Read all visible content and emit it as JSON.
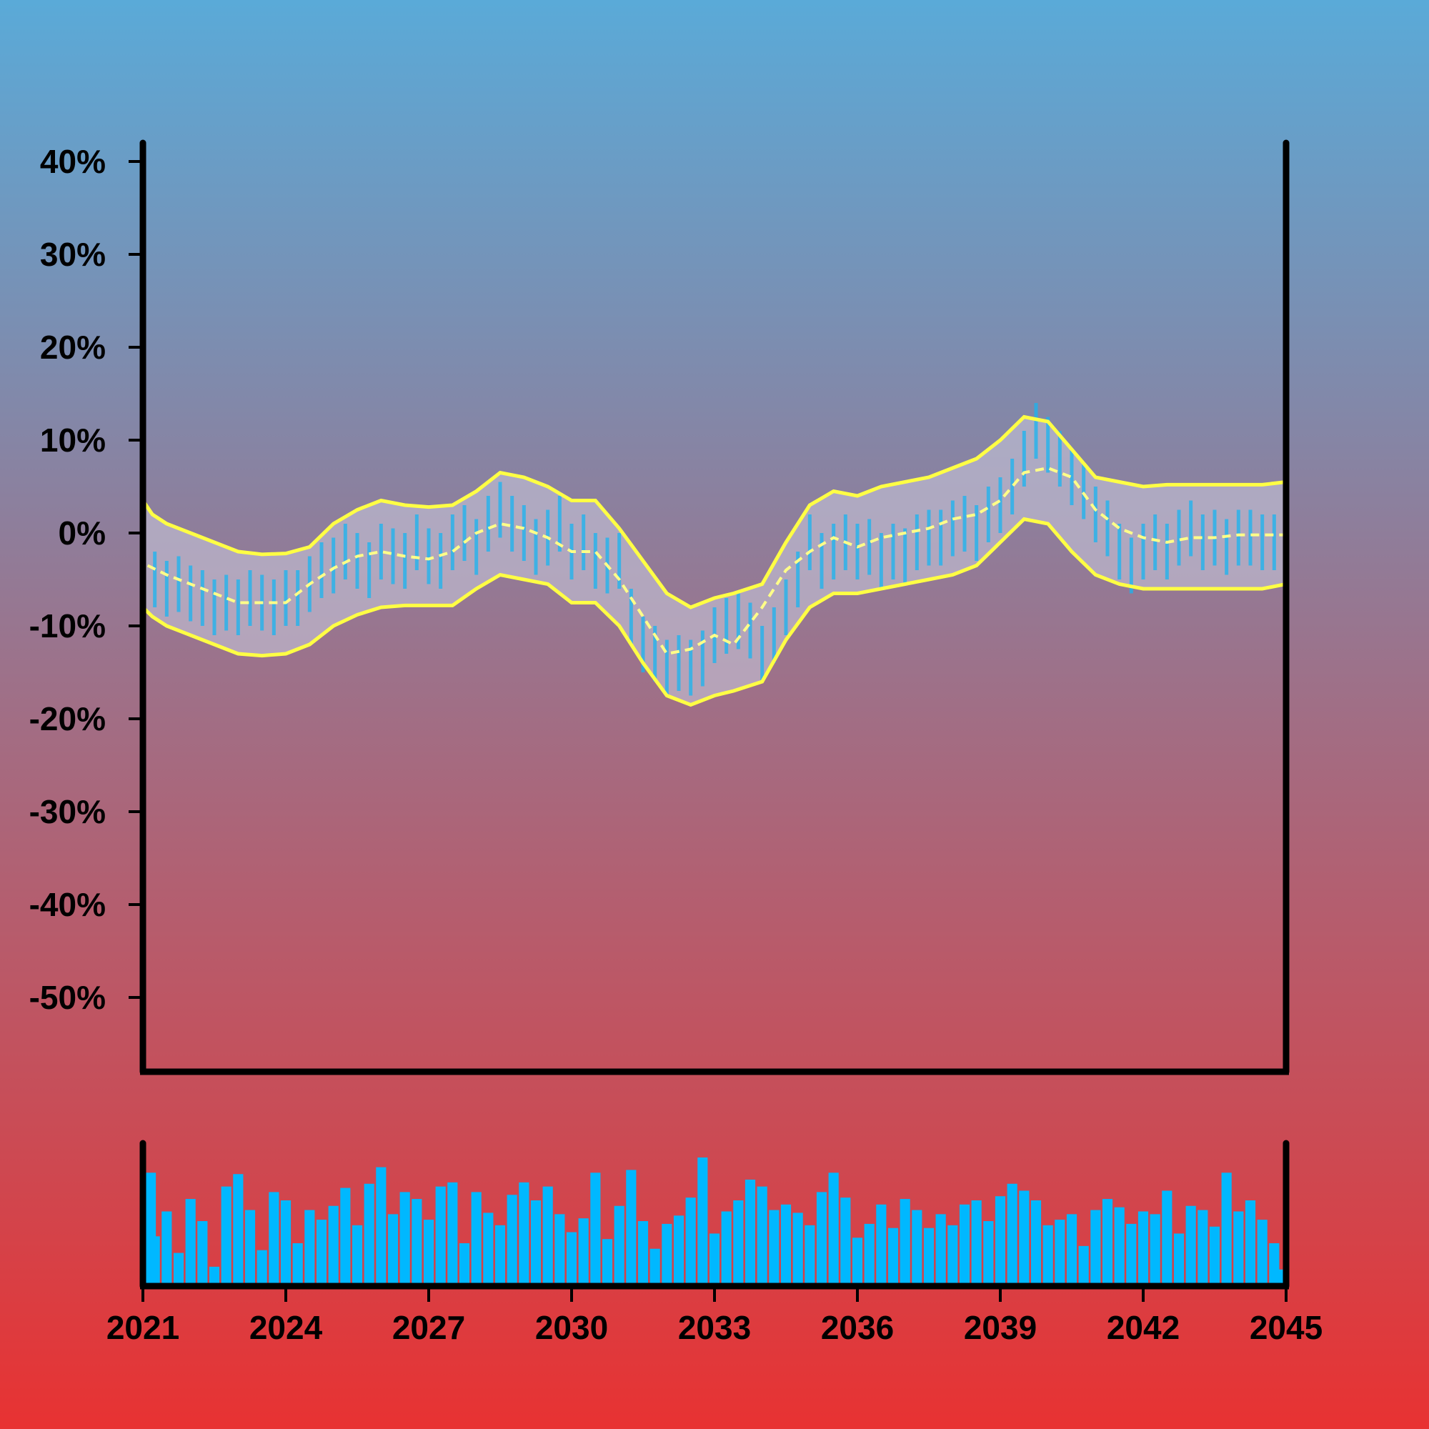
{
  "chart_data": {
    "type": "line",
    "title": "",
    "xlabel": "",
    "ylabel": "",
    "xlim": [
      2021,
      2045
    ],
    "ylim": [
      -58,
      42
    ],
    "x_ticks": [
      2021,
      2024,
      2027,
      2030,
      2033,
      2036,
      2039,
      2042,
      2045
    ],
    "x_tick_labels": [
      "2021",
      "2024",
      "2027",
      "2030",
      "2033",
      "2036",
      "2039",
      "2042",
      "2045"
    ],
    "y_ticks": [
      40,
      30,
      20,
      10,
      0,
      -10,
      -20,
      -30,
      -40,
      -50
    ],
    "y_tick_labels": [
      "40%",
      "30%",
      "20%",
      "10%",
      "0%",
      "-10%",
      "-20%",
      "-30%",
      "-40%",
      "-50%"
    ],
    "grid": false,
    "legend": "none",
    "series": [
      {
        "role": "moving-average",
        "style": "dashed",
        "x": [
          2021.1,
          2021.5,
          2022.0,
          2022.5,
          2023.0,
          2023.5,
          2024.0,
          2024.5,
          2025.0,
          2025.5,
          2026.0,
          2026.5,
          2027.0,
          2027.5,
          2028.0,
          2028.5,
          2029.0,
          2029.5,
          2030.0,
          2030.5,
          2031.0,
          2031.5,
          2032.0,
          2032.5,
          2033.0,
          2033.4,
          2034.0,
          2034.5,
          2035.0,
          2035.5,
          2036.0,
          2036.5,
          2037.0,
          2037.5,
          2038.0,
          2038.5,
          2039.0,
          2039.5,
          2040.0,
          2040.5,
          2041.0,
          2041.5,
          2042.0,
          2042.5,
          2043.0,
          2043.5,
          2044.0,
          2044.5,
          2045.0
        ],
        "y": [
          -3.5,
          -4.5,
          -5.5,
          -6.5,
          -7.5,
          -7.5,
          -7.5,
          -5.5,
          -3.8,
          -2.5,
          -2.0,
          -2.5,
          -2.8,
          -2.0,
          0.0,
          1.0,
          0.5,
          -0.5,
          -2.0,
          -2.0,
          -5.0,
          -9.0,
          -13.0,
          -12.5,
          -11.0,
          -12.0,
          -8.0,
          -4.0,
          -2.0,
          -0.5,
          -1.5,
          -0.5,
          0.0,
          0.5,
          1.5,
          2.0,
          3.5,
          6.5,
          7.0,
          6.0,
          2.5,
          0.5,
          -0.5,
          -1.0,
          -0.5,
          -0.5,
          -0.2,
          -0.2,
          -0.2
        ]
      },
      {
        "role": "upper-band",
        "style": "solid",
        "x": [
          2021.0,
          2021.2,
          2021.5,
          2022.0,
          2022.5,
          2023.0,
          2023.5,
          2024.0,
          2024.5,
          2025.0,
          2025.5,
          2026.0,
          2026.5,
          2027.0,
          2027.5,
          2028.0,
          2028.5,
          2029.0,
          2029.5,
          2030.0,
          2030.5,
          2031.0,
          2031.5,
          2032.0,
          2032.5,
          2033.0,
          2033.4,
          2034.0,
          2034.5,
          2035.0,
          2035.5,
          2036.0,
          2036.5,
          2037.0,
          2037.5,
          2038.0,
          2038.5,
          2039.0,
          2039.5,
          2040.0,
          2040.5,
          2041.0,
          2041.5,
          2042.0,
          2042.5,
          2043.0,
          2043.5,
          2044.0,
          2044.5,
          2045.0
        ],
        "y": [
          3.5,
          2.0,
          1.0,
          0.0,
          -1.0,
          -2.0,
          -2.3,
          -2.2,
          -1.5,
          1.0,
          2.5,
          3.5,
          3.0,
          2.8,
          3.0,
          4.5,
          6.5,
          6.0,
          5.0,
          3.5,
          3.5,
          0.5,
          -3.0,
          -6.5,
          -8.0,
          -7.0,
          -6.5,
          -5.5,
          -1.0,
          3.0,
          4.5,
          4.0,
          5.0,
          5.5,
          6.0,
          7.0,
          8.0,
          10.0,
          12.5,
          12.0,
          9.0,
          6.0,
          5.5,
          5.0,
          5.2,
          5.2,
          5.2,
          5.2,
          5.2,
          5.5
        ]
      },
      {
        "role": "lower-band",
        "style": "solid",
        "x": [
          2021.0,
          2021.2,
          2021.5,
          2022.0,
          2022.5,
          2023.0,
          2023.5,
          2024.0,
          2024.5,
          2025.0,
          2025.5,
          2026.0,
          2026.5,
          2027.0,
          2027.5,
          2028.0,
          2028.5,
          2029.0,
          2029.5,
          2030.0,
          2030.5,
          2031.0,
          2031.5,
          2032.0,
          2032.5,
          2033.0,
          2033.4,
          2034.0,
          2034.5,
          2035.0,
          2035.5,
          2036.0,
          2036.5,
          2037.0,
          2037.5,
          2038.0,
          2038.5,
          2039.0,
          2039.5,
          2040.0,
          2040.5,
          2041.0,
          2041.5,
          2042.0,
          2042.5,
          2043.0,
          2043.5,
          2044.0,
          2044.5,
          2045.0
        ],
        "y": [
          -8.0,
          -9.0,
          -10.0,
          -11.0,
          -12.0,
          -13.0,
          -13.2,
          -13.0,
          -12.0,
          -10.0,
          -8.8,
          -8.0,
          -7.8,
          -7.8,
          -7.8,
          -6.0,
          -4.5,
          -5.0,
          -5.5,
          -7.5,
          -7.5,
          -10.0,
          -14.0,
          -17.5,
          -18.5,
          -17.5,
          -17.0,
          -16.0,
          -11.5,
          -8.0,
          -6.5,
          -6.5,
          -6.0,
          -5.5,
          -5.0,
          -4.5,
          -3.5,
          -1.0,
          1.5,
          1.0,
          -2.0,
          -4.5,
          -5.5,
          -6.0,
          -6.0,
          -6.0,
          -6.0,
          -6.0,
          -6.0,
          -5.5
        ]
      },
      {
        "role": "observed",
        "style": "columns",
        "x": [
          2021.0,
          2021.25,
          2021.5,
          2021.75,
          2022.0,
          2022.25,
          2022.5,
          2022.75,
          2023.0,
          2023.25,
          2023.5,
          2023.75,
          2024.0,
          2024.25,
          2024.5,
          2024.75,
          2025.0,
          2025.25,
          2025.5,
          2025.75,
          2026.0,
          2026.25,
          2026.5,
          2026.75,
          2027.0,
          2027.25,
          2027.5,
          2027.75,
          2028.0,
          2028.25,
          2028.5,
          2028.75,
          2029.0,
          2029.25,
          2029.5,
          2029.75,
          2030.0,
          2030.25,
          2030.5,
          2030.75,
          2031.0,
          2031.25,
          2031.5,
          2031.75,
          2032.0,
          2032.25,
          2032.5,
          2032.75,
          2033.0,
          2033.25,
          2033.5,
          2033.75,
          2034.0,
          2034.25,
          2034.5,
          2034.75,
          2035.0,
          2035.25,
          2035.5,
          2035.75,
          2036.0,
          2036.25,
          2036.5,
          2036.75,
          2037.0,
          2037.25,
          2037.5,
          2037.75,
          2038.0,
          2038.25,
          2038.5,
          2038.75,
          2039.0,
          2039.25,
          2039.5,
          2039.75,
          2040.0,
          2040.25,
          2040.5,
          2040.75,
          2041.0,
          2041.25,
          2041.5,
          2041.75,
          2042.0,
          2042.25,
          2042.5,
          2042.75,
          2043.0,
          2043.25,
          2043.5,
          2043.75,
          2044.0,
          2044.25,
          2044.5,
          2044.75,
          2045.0
        ],
        "y": [
          -4.0,
          -5.0,
          -6.0,
          -5.5,
          -6.5,
          -7.0,
          -8.0,
          -7.5,
          -8.0,
          -7.0,
          -7.5,
          -8.0,
          -7.0,
          -7.0,
          -5.5,
          -4.0,
          -3.5,
          -2.0,
          -3.0,
          -4.0,
          -2.0,
          -2.5,
          -3.0,
          -1.0,
          -2.5,
          -3.0,
          -1.0,
          0.0,
          -1.5,
          1.0,
          2.5,
          1.0,
          0.0,
          -1.5,
          -0.5,
          1.0,
          -2.0,
          -1.0,
          -3.0,
          -3.5,
          -3.0,
          -9.0,
          -12.0,
          -13.0,
          -14.5,
          -14.0,
          -14.5,
          -13.5,
          -11.0,
          -10.0,
          -9.5,
          -10.5,
          -13.0,
          -11.0,
          -8.0,
          -5.0,
          -1.0,
          -3.0,
          -2.0,
          -1.0,
          -2.0,
          -1.5,
          -3.0,
          -2.0,
          -2.5,
          -1.0,
          -0.5,
          -0.5,
          0.5,
          1.0,
          0.0,
          2.0,
          3.0,
          5.0,
          8.0,
          11.0,
          9.5,
          8.0,
          6.0,
          4.5,
          2.0,
          0.5,
          -2.0,
          -3.5,
          -2.0,
          -1.0,
          -2.0,
          -0.5,
          0.5,
          -1.0,
          -0.5,
          -1.5,
          -0.5,
          -0.5,
          -1.0,
          -1.0,
          -3.0
        ]
      }
    ]
  },
  "volume_panel": {
    "type": "bar",
    "series": [
      {
        "role": "volume",
        "x": [
          2021.0,
          2021.25,
          2021.5,
          2021.75,
          2022.0,
          2022.25,
          2022.5,
          2022.75,
          2023.0,
          2023.25,
          2023.5,
          2023.75,
          2024.0,
          2024.25,
          2024.5,
          2024.75,
          2025.0,
          2025.25,
          2025.5,
          2025.75,
          2026.0,
          2026.25,
          2026.5,
          2026.75,
          2027.0,
          2027.25,
          2027.5,
          2027.75,
          2028.0,
          2028.25,
          2028.5,
          2028.75,
          2029.0,
          2029.25,
          2029.5,
          2029.75,
          2030.0,
          2030.25,
          2030.5,
          2030.75,
          2031.0,
          2031.25,
          2031.5,
          2031.75,
          2032.0,
          2032.25,
          2032.5,
          2032.75,
          2033.0,
          2033.25,
          2033.5,
          2033.75,
          2034.0,
          2034.25,
          2034.5,
          2034.75,
          2035.0,
          2035.25,
          2035.5,
          2035.75,
          2036.0,
          2036.25,
          2036.5,
          2036.75,
          2037.0,
          2037.25,
          2037.5,
          2037.75,
          2038.0,
          2038.25,
          2038.5,
          2038.75,
          2039.0,
          2039.25,
          2039.5,
          2039.75,
          2040.0,
          2040.25,
          2040.5,
          2040.75,
          2041.0,
          2041.25,
          2041.5,
          2041.75,
          2042.0,
          2042.25,
          2042.5,
          2042.75,
          2043.0,
          2043.25,
          2043.5,
          2043.75,
          2044.0,
          2044.25,
          2044.5,
          2044.75,
          2045.0
        ],
        "values": [
          0.82,
          0.36,
          0.54,
          0.24,
          0.63,
          0.47,
          0.14,
          0.72,
          0.81,
          0.55,
          0.26,
          0.68,
          0.62,
          0.31,
          0.55,
          0.48,
          0.58,
          0.71,
          0.44,
          0.74,
          0.86,
          0.52,
          0.68,
          0.63,
          0.48,
          0.72,
          0.75,
          0.31,
          0.68,
          0.53,
          0.44,
          0.66,
          0.75,
          0.62,
          0.72,
          0.52,
          0.39,
          0.49,
          0.82,
          0.34,
          0.58,
          0.84,
          0.47,
          0.27,
          0.45,
          0.51,
          0.64,
          0.93,
          0.38,
          0.54,
          0.62,
          0.77,
          0.72,
          0.55,
          0.59,
          0.53,
          0.44,
          0.68,
          0.82,
          0.64,
          0.35,
          0.45,
          0.59,
          0.42,
          0.63,
          0.55,
          0.42,
          0.52,
          0.44,
          0.59,
          0.62,
          0.47,
          0.65,
          0.74,
          0.69,
          0.62,
          0.44,
          0.48,
          0.52,
          0.29,
          0.55,
          0.63,
          0.57,
          0.45,
          0.54,
          0.52,
          0.69,
          0.38,
          0.58,
          0.55,
          0.43,
          0.82,
          0.54,
          0.62,
          0.48,
          0.31,
          0.12
        ]
      }
    ]
  },
  "colors": {
    "background_top": "#5aaad8",
    "background_bottom": "#e83232",
    "band_fill": "#c7c5d8",
    "band_lines": "#ffff44",
    "observed": "#18b4f0",
    "volume": "#00b8ff",
    "axes": "#000000"
  }
}
